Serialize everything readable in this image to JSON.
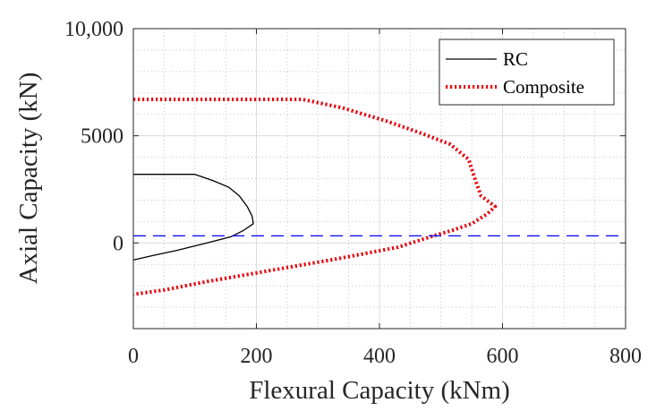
{
  "chart_data": {
    "type": "line",
    "xlabel": "Flexural Capacity (kNm)",
    "ylabel": "Axial Capacity (kN)",
    "xlim": [
      0,
      800
    ],
    "ylim": [
      -4000,
      10000
    ],
    "x_ticks": [
      0,
      200,
      400,
      600,
      800
    ],
    "x_tick_labels": [
      "0",
      "200",
      "400",
      "600",
      "800"
    ],
    "y_ticks": [
      0,
      5000,
      10000
    ],
    "y_tick_labels": [
      "0",
      "5000",
      "10,000"
    ],
    "grid": "major solid, minor dotted",
    "legend_position": "top-right",
    "series": [
      {
        "name": "RC",
        "color": "#000000",
        "style": "solid",
        "points": [
          [
            0,
            3200
          ],
          [
            100,
            3200
          ],
          [
            130,
            2900
          ],
          [
            155,
            2600
          ],
          [
            172,
            2200
          ],
          [
            185,
            1700
          ],
          [
            193,
            1250
          ],
          [
            195,
            900
          ],
          [
            180,
            600
          ],
          [
            160,
            300
          ],
          [
            120,
            0
          ],
          [
            70,
            -350
          ],
          [
            30,
            -600
          ],
          [
            0,
            -800
          ]
        ]
      },
      {
        "name": "Composite",
        "color": "#e8000b",
        "style": "dotted",
        "points": [
          [
            0,
            6700
          ],
          [
            275,
            6700
          ],
          [
            340,
            6300
          ],
          [
            410,
            5700
          ],
          [
            470,
            5100
          ],
          [
            515,
            4600
          ],
          [
            545,
            3900
          ],
          [
            555,
            3000
          ],
          [
            565,
            2200
          ],
          [
            588,
            1700
          ],
          [
            575,
            1350
          ],
          [
            550,
            900
          ],
          [
            520,
            600
          ],
          [
            490,
            350
          ],
          [
            430,
            -200
          ],
          [
            330,
            -750
          ],
          [
            230,
            -1250
          ],
          [
            120,
            -1800
          ],
          [
            50,
            -2200
          ],
          [
            0,
            -2400
          ]
        ]
      },
      {
        "name": "reference",
        "color": "#0000ff",
        "style": "dashed",
        "show_in_legend": false,
        "points": [
          [
            0,
            330
          ],
          [
            800,
            330
          ]
        ]
      }
    ]
  }
}
